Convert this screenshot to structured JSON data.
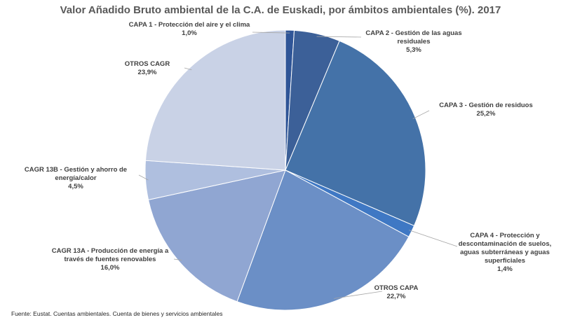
{
  "chart_data": {
    "type": "pie",
    "title": "Valor Añadido Bruto ambiental de la C.A. de Euskadi, por ámbitos ambientales (%). 2017",
    "start_angle_deg": 0,
    "direction": "clockwise",
    "slices": [
      {
        "label": "CAPA 1 - Protección del aire y el clima",
        "value": 1.0,
        "display": "1,0%",
        "color": "#2f5597"
      },
      {
        "label": "CAPA 2 - Gestión de las aguas residuales",
        "value": 5.3,
        "display": "5,3%",
        "color": "#3c6098"
      },
      {
        "label": "CAPA 3 - Gestión de residuos",
        "value": 25.2,
        "display": "25,2%",
        "color": "#4472a8"
      },
      {
        "label": "CAPA 4 - Protección y descontaminación de suelos, aguas subterráneas y aguas superficiales",
        "value": 1.4,
        "display": "1,4%",
        "color": "#3f78c4"
      },
      {
        "label": "OTROS CAPA",
        "value": 22.7,
        "display": "22,7%",
        "color": "#6b8fc6"
      },
      {
        "label": "CAGR 13A - Producción de energía a través de fuentes renovables",
        "value": 16.0,
        "display": "16,0%",
        "color": "#90a6d2"
      },
      {
        "label": "CAGR 13B - Gestión y ahorro de energía/calor",
        "value": 4.5,
        "display": "4,5%",
        "color": "#afbfdf"
      },
      {
        "label": "OTROS CAGR",
        "value": 23.9,
        "display": "23,9%",
        "color": "#c9d2e6"
      }
    ]
  },
  "source_note": "Fuente: Eustat. Cuentas ambientales. Cuenta de bienes y servicios ambientales"
}
